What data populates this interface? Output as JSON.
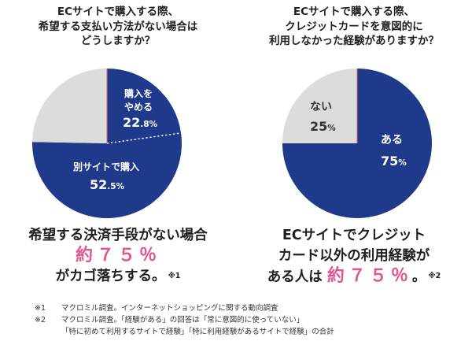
{
  "chart_data": [
    {
      "type": "pie",
      "title": [
        "ECサイトで購入する際、",
        "希望する支払い方法がない場合は",
        "どうしますか？"
      ],
      "slices": [
        {
          "label": [
            "購入を",
            "やめる"
          ],
          "value": 22.8,
          "value_main": "22",
          "value_small": ".8%",
          "color": "#1f3a8a"
        },
        {
          "label": [
            "別サイトで購入"
          ],
          "value": 52.5,
          "value_main": "52",
          "value_small": ".5%",
          "color": "#1f3a8a"
        },
        {
          "label": [],
          "value": 24.7,
          "value_main": "",
          "value_small": "",
          "color": "#dcdcdc"
        }
      ],
      "legend": "none"
    },
    {
      "type": "pie",
      "title": [
        "ECサイトで購入する際、",
        "クレジットカードを意図的に",
        "利用しなかった経験がありますか？"
      ],
      "slices": [
        {
          "label": [
            "ある"
          ],
          "value": 75,
          "value_main": "75",
          "value_small": "%",
          "color": "#1f3a8a"
        },
        {
          "label": [
            "ない"
          ],
          "value": 25,
          "value_main": "25",
          "value_small": "%",
          "color": "#dcdcdc"
        }
      ],
      "legend": "none"
    }
  ],
  "captions": {
    "left": {
      "line1": "希望する決済手段がない場合",
      "highlight": "約７５％",
      "line3": "がカゴ落ちする。",
      "note": "※1"
    },
    "right": {
      "line1": "ECサイトでクレジット",
      "line2": "カード以外の利用経験が",
      "line3_pre": "ある人は",
      "highlight": "約７５％",
      "line3_post": "。",
      "note": "※2"
    }
  },
  "footnotes": {
    "n1_mark": "※1",
    "n1": "マクロミル調査。インターネットショッピングに関する動向調査",
    "n2_mark": "※2",
    "n2": "マクロミル調査。「経験がある」の回答は「常に意図的に使っていない」",
    "n2_cont": "「特に初めて利用するサイトで経験」「特に利用経験があるサイトで経験」の合計"
  },
  "colors": {
    "navy": "#1f3a8a",
    "gray": "#dcdcdc",
    "pink": "#e0578f",
    "divider": "#e06a6a"
  }
}
